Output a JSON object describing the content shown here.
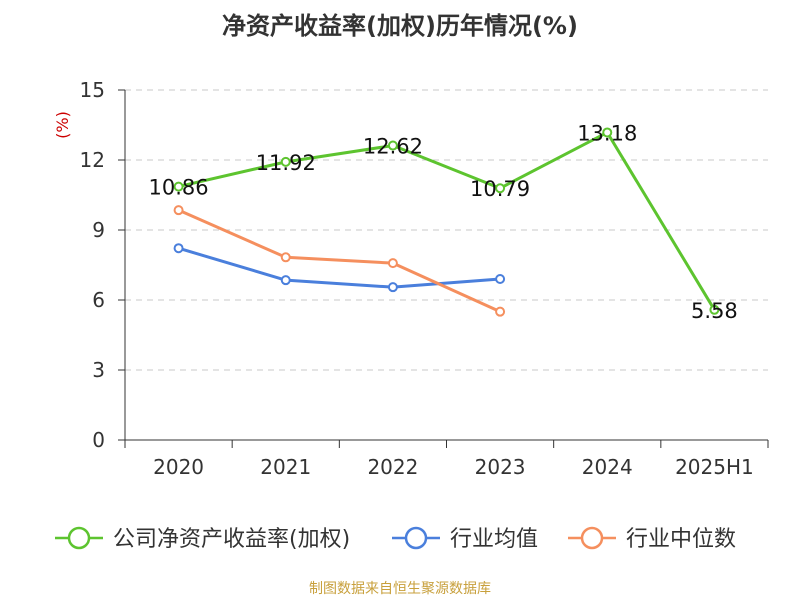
{
  "chart_data": {
    "type": "line",
    "title": "净资产收益率(加权)历年情况(%)",
    "ylabel": "(%)",
    "categories": [
      "2020",
      "2021",
      "2022",
      "2023",
      "2024",
      "2025H1"
    ],
    "ylim": [
      0,
      15
    ],
    "yticks": [
      0,
      3,
      6,
      9,
      12,
      15
    ],
    "grid": true,
    "legend_position": "bottom",
    "series": [
      {
        "name": "公司净资产收益率(加权)",
        "color": "#5dc42f",
        "values": [
          10.86,
          11.92,
          12.62,
          10.79,
          13.18,
          5.58
        ],
        "data_labels": [
          "10.86",
          "11.92",
          "12.62",
          "10.79",
          "13.18",
          "5.58"
        ]
      },
      {
        "name": "行业均值",
        "color": "#4a7fdc",
        "values": [
          8.22,
          6.85,
          6.55,
          6.9,
          null,
          null
        ]
      },
      {
        "name": "行业中位数",
        "color": "#f58f5e",
        "values": [
          9.85,
          7.83,
          7.58,
          5.5,
          null,
          null
        ]
      }
    ]
  },
  "source": "制图数据来自恒生聚源数据库"
}
